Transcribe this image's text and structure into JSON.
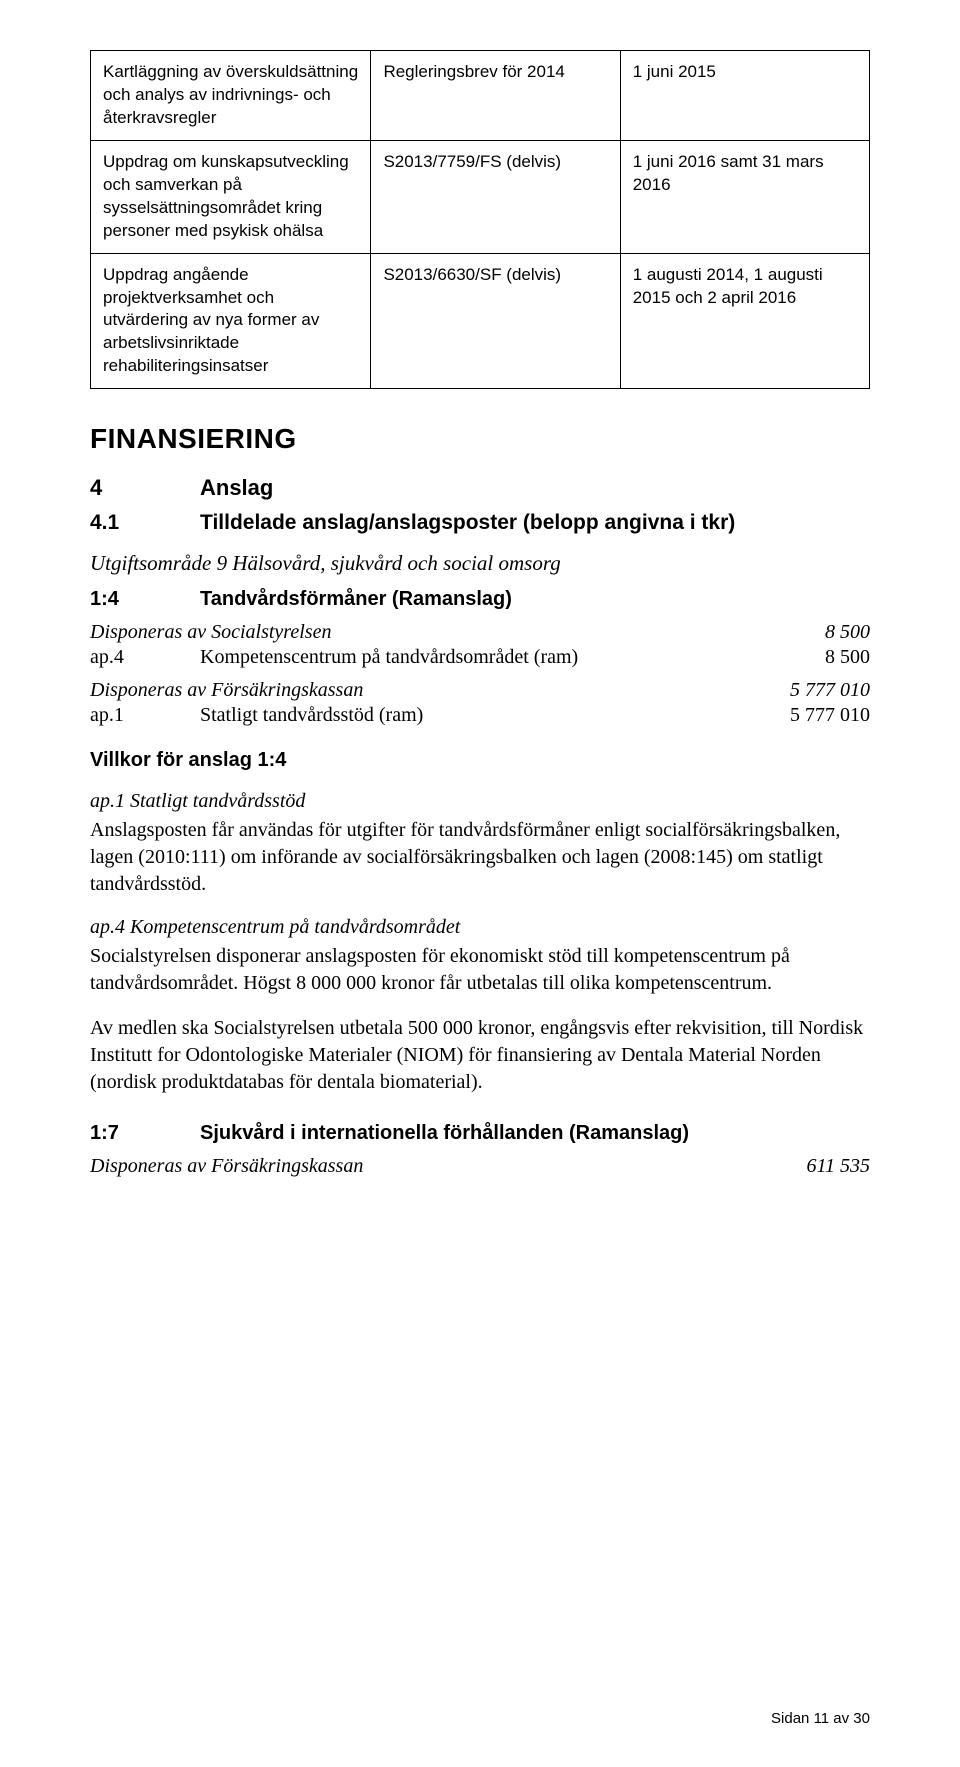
{
  "table": {
    "rows": [
      {
        "c1": "Kartläggning av överskuldsättning och analys av indrivnings- och återkravsregler",
        "c2": "Regleringsbrev för 2014",
        "c3": "1 juni 2015"
      },
      {
        "c1": "Uppdrag om kunskapsutveckling och samverkan på sysselsättningsområdet kring personer med psykisk ohälsa",
        "c2": "S2013/7759/FS (delvis)",
        "c3": "1 juni 2016 samt 31 mars 2016"
      },
      {
        "c1": "Uppdrag angående projektverksamhet och utvärdering av nya former av arbetslivsinriktade rehabiliteringsinsatser",
        "c2": "S2013/6630/SF (delvis)",
        "c3": "1 augusti 2014, 1 augusti 2015 och 2 april 2016"
      }
    ]
  },
  "financing_heading": "FINANSIERING",
  "sec4": {
    "num": "4",
    "title": "Anslag"
  },
  "sec41": {
    "num": "4.1",
    "title": "Tilldelade anslag/anslagsposter (belopp angivna i tkr)"
  },
  "area9": "Utgiftsområde 9 Hälsovård, sjukvård och social omsorg",
  "anslag14": {
    "num": "1:4",
    "title": "Tandvårdsförmåner (Ramanslag)"
  },
  "disp1": {
    "label": "Disponeras av Socialstyrelsen",
    "amount": "8 500"
  },
  "ap4": {
    "code": "ap.4",
    "desc": "Kompetenscentrum på tandvårdsområdet (ram)",
    "amount": "8 500"
  },
  "disp2": {
    "label": "Disponeras av Försäkringskassan",
    "amount": "5 777 010"
  },
  "ap1": {
    "code": "ap.1",
    "desc": "Statligt tandvårdsstöd (ram)",
    "amount": "5 777 010"
  },
  "villkor14": "Villkor för anslag 1:4",
  "ap1_head": "ap.1 Statligt tandvårdsstöd",
  "ap1_body": "Anslagsposten får användas för utgifter för tandvårdsförmåner enligt socialförsäkringsbalken, lagen (2010:111) om införande av socialförsäkringsbalken och lagen (2008:145) om statligt tandvårdsstöd.",
  "ap4_head": "ap.4 Kompetenscentrum på tandvårdsområdet",
  "ap4_body": "Socialstyrelsen disponerar anslagsposten för ekonomiskt stöd till kompetenscentrum på tandvårdsområdet. Högst 8 000 000 kronor får utbetalas till olika kompetenscentrum.",
  "niom": "Av medlen ska Socialstyrelsen utbetala 500 000 kronor, engångsvis efter rekvisition, till Nordisk Institutt for Odontologiske Materialer (NIOM) för finansiering av Dentala Material Norden (nordisk produktdatabas för dentala biomaterial).",
  "anslag17": {
    "num": "1:7",
    "title": "Sjukvård i internationella förhållanden (Ramanslag)"
  },
  "disp3": {
    "label": "Disponeras av Försäkringskassan",
    "amount": "611 535"
  },
  "footer": "Sidan 11 av 30"
}
